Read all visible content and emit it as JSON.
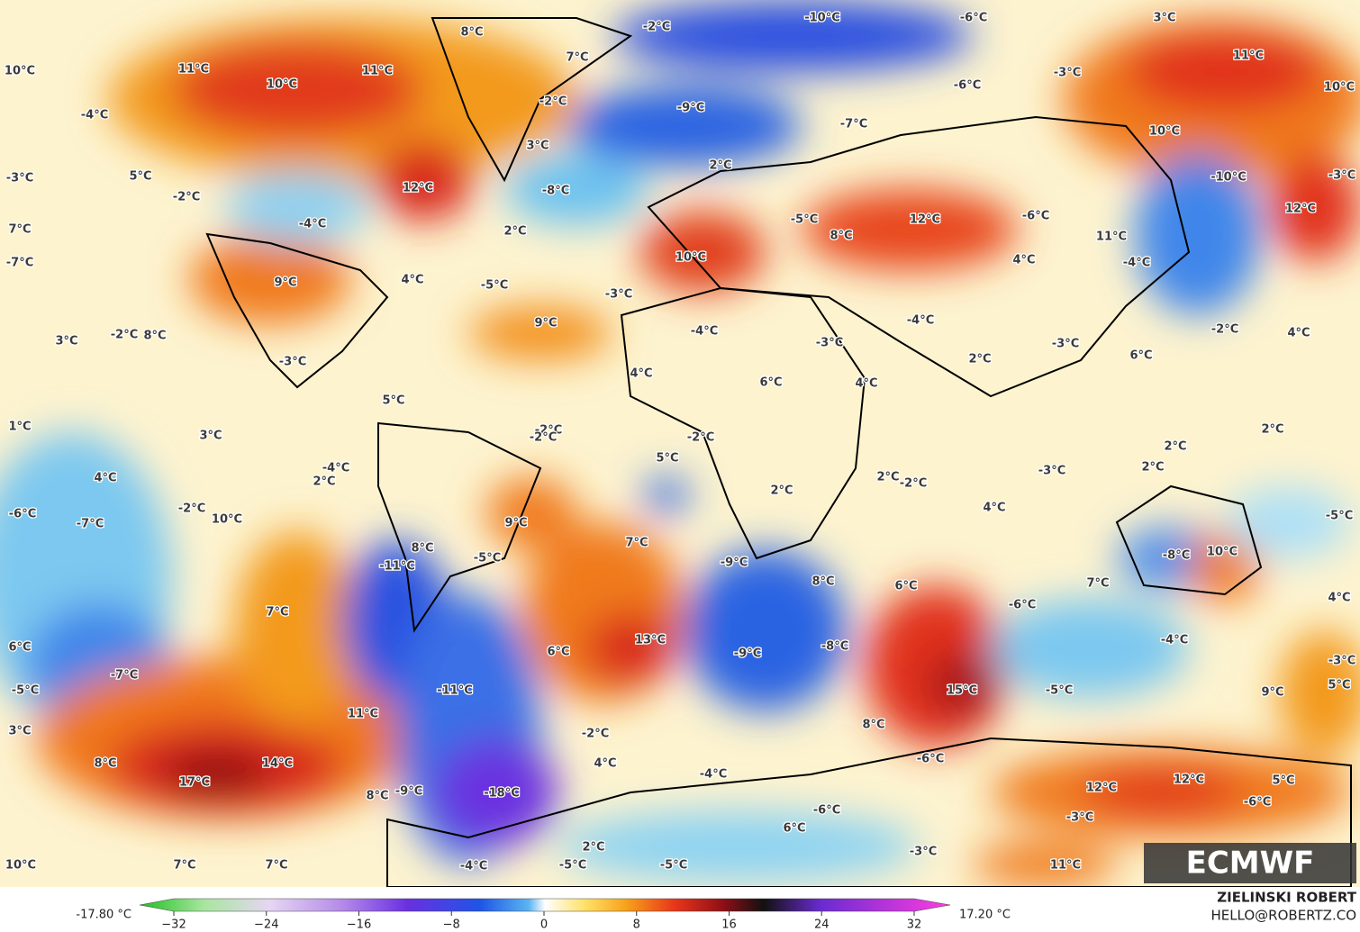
{
  "map": {
    "labels": [
      "10°C",
      "11°C",
      "10°C",
      "11°C",
      "8°C",
      "7°C",
      "-2°C",
      "-10°C",
      "-6°C",
      "3°C",
      "11°C",
      "10°C",
      "-4°C",
      "-2°C",
      "-9°C",
      "-6°C",
      "-3°C",
      "-7°C",
      "10°C",
      "3°C",
      "2°C",
      "-8°C",
      "12°C",
      "-3°C",
      "5°C",
      "-2°C",
      "-4°C",
      "-10°C",
      "-3°C",
      "7°C",
      "2°C",
      "-5°C",
      "12°C",
      "-6°C",
      "11°C",
      "12°C",
      "-7°C",
      "8°C",
      "10°C",
      "4°C",
      "-4°C",
      "9°C",
      "-5°C",
      "-3°C",
      "4°C",
      "9°C",
      "-4°C",
      "-2°C",
      "4°C",
      "3°C",
      "-2°C",
      "8°C",
      "-3°C",
      "-4°C",
      "-3°C",
      "-3°C",
      "6°C",
      "2°C",
      "4°C",
      "6°C",
      "4°C",
      "5°C",
      "1°C",
      "3°C",
      "-2°C",
      "-2°C",
      "-2°C",
      "2°C",
      "5°C",
      "2°C",
      "-4°C",
      "2°C",
      "4°C",
      "2°C",
      "-2°C",
      "-3°C",
      "2°C",
      "2°C",
      "-6°C",
      "-7°C",
      "-2°C",
      "10°C",
      "9°C",
      "4°C",
      "-5°C",
      "8°C",
      "-5°C",
      "7°C",
      "-11°C",
      "-9°C",
      "-8°C",
      "10°C",
      "8°C",
      "6°C",
      "7°C",
      "4°C",
      "-6°C",
      "7°C",
      "6°C",
      "13°C",
      "6°C",
      "-7°C",
      "-9°C",
      "-8°C",
      "-4°C",
      "-3°C",
      "-5°C",
      "-11°C",
      "15°C",
      "-5°C",
      "9°C",
      "5°C",
      "3°C",
      "11°C",
      "8°C",
      "-2°C",
      "-6°C",
      "8°C",
      "14°C",
      "4°C",
      "-4°C",
      "17°C",
      "12°C",
      "12°C",
      "5°C",
      "8°C",
      "-9°C",
      "-18°C",
      "-6°C",
      "-3°C",
      "6°C",
      "-6°C",
      "2°C",
      "-3°C",
      "10°C",
      "7°C",
      "7°C",
      "-4°C",
      "-5°C",
      "-5°C",
      "11°C"
    ]
  },
  "colorbar": {
    "min_label": "-17.80 °C",
    "max_label": "17.20 °C",
    "ticks": [
      {
        "value": -32,
        "label": "−32"
      },
      {
        "value": -24,
        "label": "−24"
      },
      {
        "value": -16,
        "label": "−16"
      },
      {
        "value": -8,
        "label": "−8"
      },
      0,
      8,
      16,
      24,
      32
    ]
  },
  "logo": "ECMWF",
  "credit": {
    "author": "ZIELINSKI ROBERT",
    "email": "HELLO@ROBERTZ.CO"
  }
}
